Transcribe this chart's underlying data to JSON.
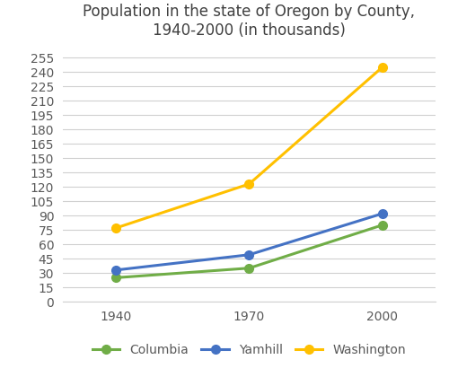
{
  "title": "Population in the state of Oregon by County,\n1940-2000 (in thousands)",
  "years": [
    1940,
    1970,
    2000
  ],
  "series": {
    "Columbia": {
      "values": [
        25,
        35,
        80
      ],
      "color": "#70ad47",
      "marker": "o"
    },
    "Yamhill": {
      "values": [
        33,
        49,
        92
      ],
      "color": "#4472c4",
      "marker": "o"
    },
    "Washington": {
      "values": [
        77,
        123,
        245
      ],
      "color": "#ffc000",
      "marker": "o"
    }
  },
  "yticks": [
    0,
    15,
    30,
    45,
    60,
    75,
    90,
    105,
    120,
    135,
    150,
    165,
    180,
    195,
    210,
    225,
    240,
    255
  ],
  "ylim": [
    0,
    268
  ],
  "xlim": [
    1928,
    2012
  ],
  "xticks": [
    1940,
    1970,
    2000
  ],
  "grid_color": "#d0d0d0",
  "background_color": "#ffffff",
  "title_fontsize": 12,
  "legend_fontsize": 10,
  "tick_fontsize": 10,
  "line_width": 2.2,
  "marker_size": 7
}
